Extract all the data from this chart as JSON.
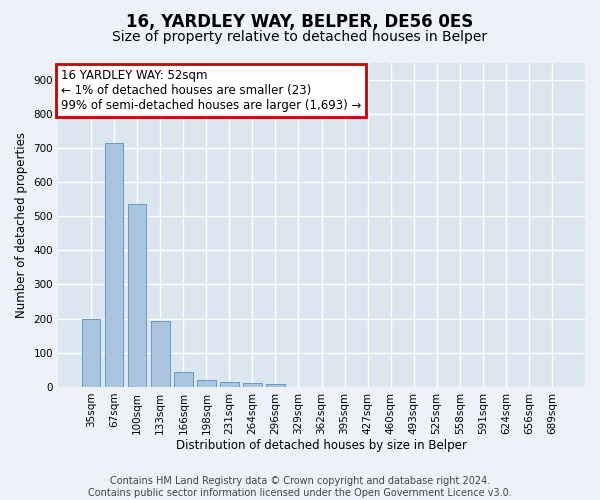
{
  "title1": "16, YARDLEY WAY, BELPER, DE56 0ES",
  "title2": "Size of property relative to detached houses in Belper",
  "xlabel": "Distribution of detached houses by size in Belper",
  "ylabel": "Number of detached properties",
  "categories": [
    "35sqm",
    "67sqm",
    "100sqm",
    "133sqm",
    "166sqm",
    "198sqm",
    "231sqm",
    "264sqm",
    "296sqm",
    "329sqm",
    "362sqm",
    "395sqm",
    "427sqm",
    "460sqm",
    "493sqm",
    "525sqm",
    "558sqm",
    "591sqm",
    "624sqm",
    "656sqm",
    "689sqm"
  ],
  "values": [
    200,
    715,
    535,
    193,
    43,
    20,
    15,
    12,
    9,
    0,
    0,
    0,
    0,
    0,
    0,
    0,
    0,
    0,
    0,
    0,
    0
  ],
  "bar_color": "#aac4df",
  "bar_edge_color": "#6699cc",
  "annotation_text": "16 YARDLEY WAY: 52sqm\n← 1% of detached houses are smaller (23)\n99% of semi-detached houses are larger (1,693) →",
  "annotation_box_color": "#ffffff",
  "annotation_border_color": "#cc0000",
  "ylim": [
    0,
    950
  ],
  "yticks": [
    0,
    100,
    200,
    300,
    400,
    500,
    600,
    700,
    800,
    900
  ],
  "footer_text": "Contains HM Land Registry data © Crown copyright and database right 2024.\nContains public sector information licensed under the Open Government Licence v3.0.",
  "bg_color": "#eef2f8",
  "plot_bg_color": "#dce6f0",
  "grid_color": "#ffffff",
  "title1_fontsize": 12,
  "title2_fontsize": 10,
  "axis_label_fontsize": 8.5,
  "tick_fontsize": 7.5,
  "annotation_fontsize": 8.5,
  "footer_fontsize": 7
}
